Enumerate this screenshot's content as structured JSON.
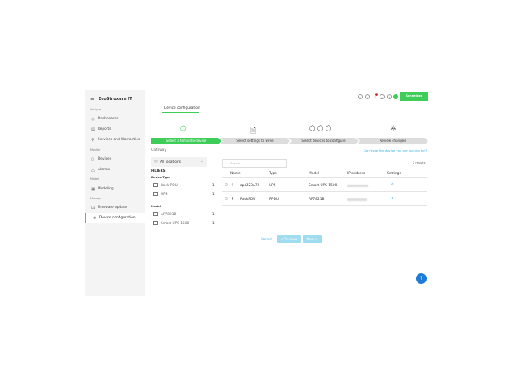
{
  "app": {
    "brand": "EcoStruxure IT",
    "vendor_button": "Schneider Electric",
    "accent": "#3dcd58"
  },
  "sidebar": {
    "sections": [
      {
        "label": "Analyze",
        "items": [
          {
            "label": "Dashboards",
            "icon": "eye-icon"
          },
          {
            "label": "Reports",
            "icon": "document-icon"
          },
          {
            "label": "Services and Warranties",
            "icon": "wrench-icon"
          }
        ]
      },
      {
        "label": "Monitor",
        "items": [
          {
            "label": "Devices",
            "icon": "device-icon"
          },
          {
            "label": "Alarms",
            "icon": "bell-icon"
          }
        ]
      },
      {
        "label": "Model",
        "items": [
          {
            "label": "Modeling",
            "icon": "cube-icon"
          }
        ]
      },
      {
        "label": "Manage",
        "items": [
          {
            "label": "Firmware update",
            "icon": "firmware-icon"
          },
          {
            "label": "Device configuration",
            "icon": "gear-icon",
            "active": true
          }
        ]
      }
    ]
  },
  "tab": "Device configuration",
  "steps": [
    "Select a template device",
    "Select settings to write",
    "Select devices to configure",
    "Review changes"
  ],
  "gateway": {
    "label": "Gateway",
    "value": "All locations"
  },
  "help_link": "Don't see the device you are looking for?",
  "filters": {
    "title": "FILTERS",
    "groups": [
      {
        "label": "Device Type",
        "options": [
          {
            "label": "Rack PDU",
            "count": "1"
          },
          {
            "label": "UPS",
            "count": "1"
          }
        ]
      },
      {
        "label": "Model",
        "options": [
          {
            "label": "AP7821B",
            "count": "1"
          },
          {
            "label": "Smart-UPS 1500",
            "count": "1"
          }
        ]
      }
    ]
  },
  "search": {
    "placeholder": "Search..."
  },
  "results": "2 results",
  "table": {
    "columns": [
      "Name",
      "Type",
      "Model",
      "IP address",
      "Settings"
    ],
    "rows": [
      {
        "name": "apc323A70",
        "type": "UPS",
        "model": "Smart-UPS 1500"
      },
      {
        "name": "RackPDU",
        "type": "RPDU",
        "model": "AP7821B"
      }
    ]
  },
  "buttons": {
    "cancel": "Cancel",
    "previous": "< Previous",
    "next": "Next >"
  },
  "notifications_badge": "1"
}
